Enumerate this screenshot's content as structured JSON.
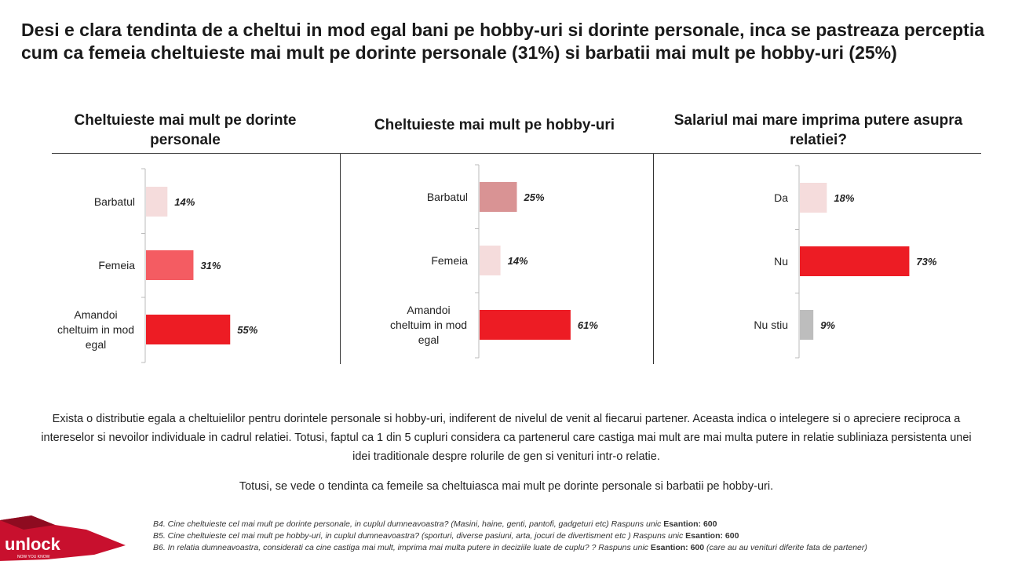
{
  "title": "Desi e clara tendinta de a cheltui in mod egal bani pe hobby-uri si dorinte personale, inca se pastreaza perceptia cum ca femeia cheltuieste mai mult pe dorinte personale (31%) si barbatii mai mult pe hobby-uri (25%)",
  "chart_data": [
    {
      "type": "bar",
      "orientation": "horizontal",
      "title": "Cheltuieste mai mult pe dorinte personale",
      "categories": [
        "Barbatul",
        "Femeia",
        "Amandoi cheltuim in mod egal"
      ],
      "values": [
        14,
        31,
        55
      ],
      "value_labels": [
        "14%",
        "31%",
        "55%"
      ],
      "colors": [
        "#f5dcdc",
        "#f45c62",
        "#ed1c24"
      ],
      "xlim": [
        0,
        100
      ]
    },
    {
      "type": "bar",
      "orientation": "horizontal",
      "title": "Cheltuieste mai mult pe hobby-uri",
      "categories": [
        "Barbatul",
        "Femeia",
        "Amandoi cheltuim in mod egal"
      ],
      "values": [
        25,
        14,
        61
      ],
      "value_labels": [
        "25%",
        "14%",
        "61%"
      ],
      "colors": [
        "#d99394",
        "#f5dcdc",
        "#ed1c24"
      ],
      "xlim": [
        0,
        100
      ]
    },
    {
      "type": "bar",
      "orientation": "horizontal",
      "title": "Salariul mai mare imprima putere asupra relatiei?",
      "categories": [
        "Da",
        "Nu",
        "Nu stiu"
      ],
      "values": [
        18,
        73,
        9
      ],
      "value_labels": [
        "18%",
        "73%",
        "9%"
      ],
      "colors": [
        "#f5dcdc",
        "#ed1c24",
        "#bdbdbd"
      ],
      "xlim": [
        0,
        100
      ]
    }
  ],
  "paragraph1": "Exista o distributie egala a cheltuielilor pentru dorintele personale si hobby-uri, indiferent de nivelul de venit al fiecarui partener. Aceasta indica o intelegere si o apreciere reciproca a intereselor si nevoilor individuale in cadrul relatiei. Totusi, faptul ca 1 din 5 cupluri considera ca partenerul care castiga mai mult are mai multa putere in relatie subliniaza persistenta unei idei traditionale despre rolurile de gen si venituri intr-o relatie.",
  "paragraph2": "Totusi, se vede o tendinta ca femeile sa cheltuiasca mai mult pe dorinte personale si barbatii pe hobby-uri.",
  "notes": [
    {
      "text": "B4. Cine cheltuieste cel mai mult pe dorinte personale, in cuplul dumneavoastra? (Masini, haine, genti, pantofi, gadgeturi etc) Raspuns unic ",
      "bold": "Esantion: 600",
      "after": ""
    },
    {
      "text": "B5. Cine cheltuieste cel mai mult pe hobby-uri, in cuplul dumneavoastra? (sporturi, diverse pasiuni, arta, jocuri de divertisment etc ) Raspuns unic ",
      "bold": "Esantion: 600",
      "after": ""
    },
    {
      "text": "B6. In relatia dumneavoastra, considerati ca cine castiga mai mult, imprima mai multa putere in deciziile luate de cuplu? ? Raspuns unic ",
      "bold": "Esantion: 600",
      "after": " (care au au venituri diferite fata de partener)"
    }
  ],
  "logo": {
    "name": "unlock",
    "tagline": "NOW YOU KNOW",
    "color": "#c8102e"
  }
}
